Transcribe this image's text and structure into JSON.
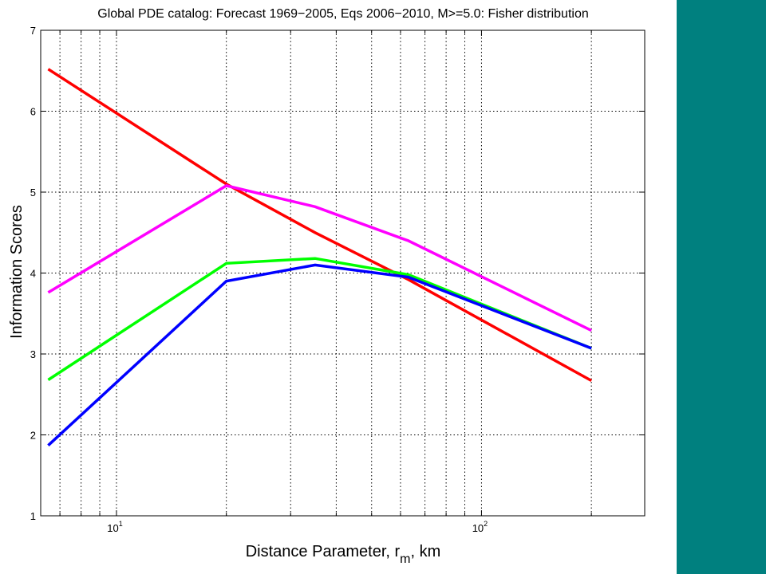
{
  "chart_data": {
    "type": "line",
    "title": "Global PDE catalog: Forecast 1969−2005, Eqs 2006−2010, M>=5.0: Fisher distribution",
    "xlabel": "Distance Parameter, r",
    "xlabel_sub": "m",
    "xlabel_suffix": ", km",
    "ylabel": "Information Scores",
    "xscale": "log",
    "xlim": [
      6.2,
      280
    ],
    "ylim": [
      1,
      7
    ],
    "grid": true,
    "x_tick_labels": [
      {
        "value": 10,
        "base": "10",
        "exp": "1"
      },
      {
        "value": 100,
        "base": "10",
        "exp": "2"
      }
    ],
    "y_ticks": [
      1,
      2,
      3,
      4,
      5,
      6,
      7
    ],
    "series": [
      {
        "color": "#ff0000",
        "x": [
          6.5,
          20,
          35,
          63,
          200
        ],
        "y": [
          6.52,
          5.1,
          4.5,
          3.92,
          2.67
        ]
      },
      {
        "color": "#ff00ff",
        "x": [
          6.5,
          20,
          35,
          63,
          200
        ],
        "y": [
          3.76,
          5.08,
          4.82,
          4.4,
          3.29
        ]
      },
      {
        "color": "#00ff00",
        "x": [
          6.5,
          20,
          35,
          63,
          200
        ],
        "y": [
          2.68,
          4.12,
          4.18,
          3.98,
          3.07
        ]
      },
      {
        "color": "#0000ff",
        "x": [
          6.5,
          20,
          35,
          63,
          200
        ],
        "y": [
          1.87,
          3.9,
          4.1,
          3.95,
          3.07
        ]
      }
    ]
  },
  "colors": {
    "side_panel": "#00807f",
    "grid": "#000000"
  }
}
